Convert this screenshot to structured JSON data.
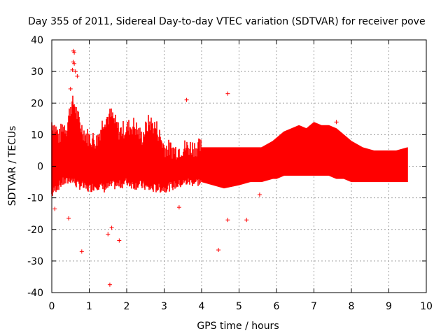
{
  "chart_data": {
    "type": "scatter",
    "title": "Day 355 of 2011, Sidereal Day-to-day VTEC variation (SDTVAR) for receiver pove",
    "xlabel": "GPS time / hours",
    "ylabel": "SDTVAR / TECUs",
    "xlim": [
      0,
      10
    ],
    "ylim": [
      -40,
      40
    ],
    "x_ticks": [
      0,
      1,
      2,
      3,
      4,
      5,
      6,
      7,
      8,
      9,
      10
    ],
    "y_ticks": [
      -40,
      -30,
      -20,
      -10,
      0,
      10,
      20,
      30,
      40
    ],
    "grid": true,
    "marker": "+",
    "color": "#ff0000",
    "series": [
      {
        "name": "SDTVAR",
        "envelope": {
          "x": [
            0,
            0.1,
            0.2,
            0.3,
            0.4,
            0.5,
            0.6,
            0.7,
            0.8,
            0.9,
            1.0,
            1.2,
            1.4,
            1.6,
            1.8,
            2.0,
            2.2,
            2.4,
            2.6,
            2.8,
            3.0,
            3.3,
            3.6,
            4.0,
            4.3,
            4.6,
            5.0,
            5.3,
            5.6,
            5.9,
            6.0,
            6.2,
            6.4,
            6.6,
            6.8,
            7.0,
            7.2,
            7.4,
            7.6,
            7.8,
            8.0,
            8.3,
            8.6,
            8.9,
            9.2,
            9.5
          ],
          "upper": [
            14,
            12,
            9,
            13,
            12,
            19,
            20,
            15,
            12,
            10,
            9,
            8,
            15,
            16,
            11,
            12,
            13,
            9,
            14,
            12,
            6,
            5,
            6,
            6,
            6,
            6,
            6,
            6,
            6,
            8,
            9,
            11,
            12,
            13,
            12,
            14,
            13,
            13,
            12,
            10,
            8,
            6,
            5,
            5,
            5,
            6
          ],
          "lower": [
            -9,
            -7,
            -6,
            -5,
            -5,
            -4,
            -5,
            -6,
            -6,
            -7,
            -7,
            -6,
            -7,
            -6,
            -6,
            -5,
            -6,
            -6,
            -7,
            -7,
            -7,
            -6,
            -5,
            -5,
            -6,
            -7,
            -6,
            -5,
            -5,
            -4,
            -4,
            -3,
            -3,
            -3,
            -3,
            -3,
            -3,
            -3,
            -4,
            -4,
            -5,
            -5,
            -5,
            -5,
            -5,
            -5
          ]
        },
        "outliers": [
          {
            "x": 0.58,
            "y": 36.5
          },
          {
            "x": 0.6,
            "y": 36
          },
          {
            "x": 0.57,
            "y": 33
          },
          {
            "x": 0.6,
            "y": 32.5
          },
          {
            "x": 0.55,
            "y": 30.5
          },
          {
            "x": 0.63,
            "y": 30
          },
          {
            "x": 0.68,
            "y": 28.5
          },
          {
            "x": 0.5,
            "y": 24.5
          },
          {
            "x": 4.7,
            "y": 23
          },
          {
            "x": 3.6,
            "y": 21
          },
          {
            "x": 7.6,
            "y": 14
          },
          {
            "x": 0.08,
            "y": -13.5
          },
          {
            "x": 0.45,
            "y": -16.5
          },
          {
            "x": 0.8,
            "y": -27
          },
          {
            "x": 1.55,
            "y": -37.5
          },
          {
            "x": 1.5,
            "y": -21.5
          },
          {
            "x": 1.6,
            "y": -19.5
          },
          {
            "x": 1.8,
            "y": -23.5
          },
          {
            "x": 4.45,
            "y": -26.5
          },
          {
            "x": 4.7,
            "y": -17
          },
          {
            "x": 5.2,
            "y": -17
          },
          {
            "x": 3.4,
            "y": -13
          },
          {
            "x": 5.55,
            "y": -9
          }
        ]
      }
    ]
  }
}
